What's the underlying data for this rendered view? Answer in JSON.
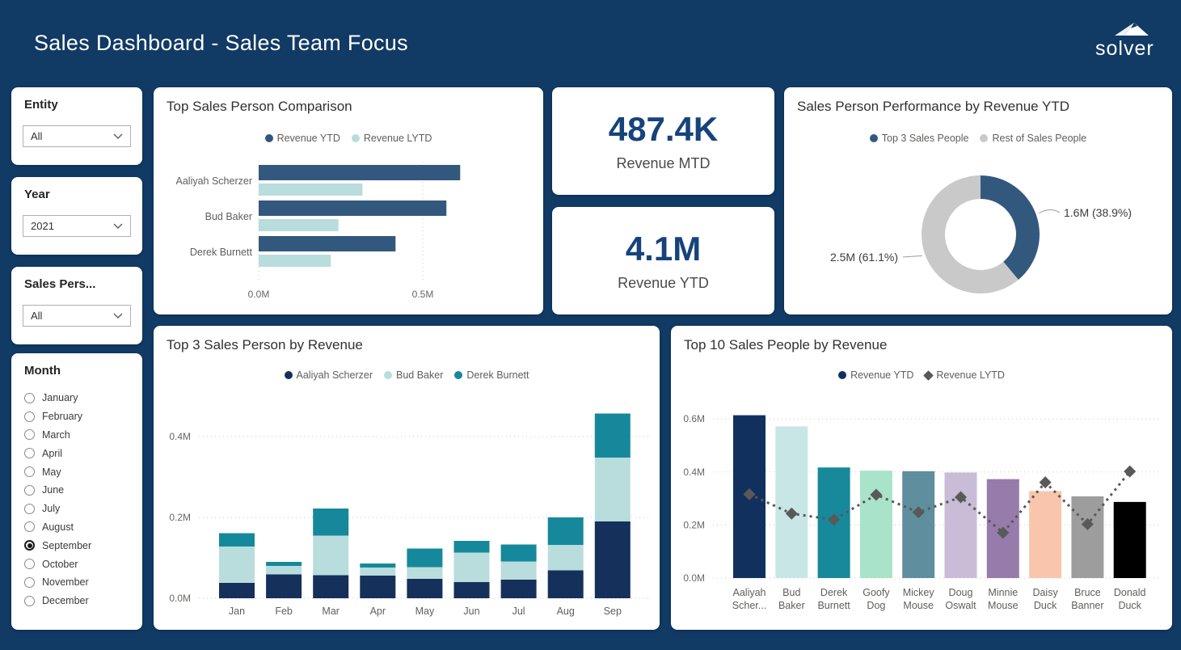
{
  "header": {
    "title": "Sales Dashboard - Sales Team Focus",
    "logo_text": "solver"
  },
  "colors": {
    "page_bg": "#113A64",
    "kpi_value": "#17437B",
    "grid_line": "#c8c8c8",
    "lytd_line": "#595959"
  },
  "filters": {
    "entity": {
      "label": "Entity",
      "value": "All"
    },
    "year": {
      "label": "Year",
      "value": "2021"
    },
    "sales_person": {
      "label": "Sales Pers...",
      "value": "All"
    },
    "month": {
      "label": "Month",
      "selected": "September",
      "options": [
        "January",
        "February",
        "March",
        "April",
        "May",
        "June",
        "July",
        "August",
        "September",
        "October",
        "November",
        "December"
      ]
    }
  },
  "kpis": [
    {
      "value": "487.4K",
      "label": "Revenue MTD"
    },
    {
      "value": "4.1M",
      "label": "Revenue YTD"
    }
  ],
  "chart_data": [
    {
      "id": "comparison",
      "type": "bar",
      "orientation": "horizontal",
      "title": "Top Sales Person Comparison",
      "categories": [
        "Aaliyah Scherzer",
        "Bud Baker",
        "Derek Burnett"
      ],
      "series": [
        {
          "name": "Revenue YTD",
          "color": "#33587E",
          "values": [
            0.614,
            0.572,
            0.417
          ]
        },
        {
          "name": "Revenue LYTD",
          "color": "#B9DCDD",
          "values": [
            0.316,
            0.243,
            0.22
          ]
        }
      ],
      "x_ticks": [
        0.0,
        0.5
      ],
      "xlim": [
        0,
        0.85
      ],
      "unit": "M",
      "grid": true,
      "legend_position": "top"
    },
    {
      "id": "performance_donut",
      "type": "pie",
      "title": "Sales Person Performance by Revenue YTD",
      "slices": [
        {
          "name": "Top 3 Sales People",
          "value": 1.6,
          "pct": 38.9,
          "label": "1.6M (38.9%)",
          "color": "#33587E"
        },
        {
          "name": "Rest of Sales People",
          "value": 2.5,
          "pct": 61.1,
          "label": "2.5M (61.1%)",
          "color": "#C9C9C9"
        }
      ],
      "legend_position": "top"
    },
    {
      "id": "top3_monthly",
      "type": "bar",
      "stacked": true,
      "title": "Top 3 Sales Person by Revenue",
      "categories": [
        "Jan",
        "Feb",
        "Mar",
        "Apr",
        "May",
        "Jun",
        "Jul",
        "Aug",
        "Sep"
      ],
      "series": [
        {
          "name": "Aaliyah Scherzer",
          "color": "#16305C",
          "values": [
            0.038,
            0.059,
            0.057,
            0.056,
            0.048,
            0.04,
            0.046,
            0.069,
            0.19
          ]
        },
        {
          "name": "Bud Baker",
          "color": "#B9DCDD",
          "values": [
            0.09,
            0.021,
            0.098,
            0.02,
            0.029,
            0.073,
            0.045,
            0.063,
            0.158
          ]
        },
        {
          "name": "Derek Burnett",
          "color": "#15899B",
          "values": [
            0.033,
            0.01,
            0.067,
            0.01,
            0.046,
            0.029,
            0.042,
            0.068,
            0.109
          ]
        }
      ],
      "y_ticks": [
        0.0,
        0.2,
        0.4
      ],
      "ylim": [
        0,
        0.468
      ],
      "unit": "M",
      "grid": true,
      "legend_position": "top"
    },
    {
      "id": "top10_people",
      "type": "bar",
      "title": "Top 10 Sales People by Revenue",
      "categories": [
        [
          "Aaliyah",
          "Scher..."
        ],
        [
          "Bud",
          "Baker"
        ],
        [
          "Derek",
          "Burnett"
        ],
        [
          "Goofy",
          "Dog"
        ],
        [
          "Mickey",
          "Mouse"
        ],
        [
          "Doug",
          "Oswalt"
        ],
        [
          "Minnie",
          "Mouse"
        ],
        [
          "Daisy",
          "Duck"
        ],
        [
          "Bruce",
          "Banner"
        ],
        [
          "Donald",
          "Duck"
        ]
      ],
      "series": [
        {
          "name": "Revenue YTD",
          "type": "bar",
          "values": [
            0.614,
            0.572,
            0.417,
            0.405,
            0.403,
            0.398,
            0.373,
            0.328,
            0.308,
            0.287
          ],
          "bar_colors": [
            "#12305E",
            "#C9E6E6",
            "#17899B",
            "#A9E3C9",
            "#5F8E9E",
            "#C9BCD7",
            "#967BAB",
            "#F9C6AD",
            "#9D9D9D",
            "#000000"
          ]
        },
        {
          "name": "Revenue LYTD",
          "type": "line",
          "color": "#595959",
          "marker": "diamond",
          "line_style": "dotted",
          "values": [
            0.316,
            0.243,
            0.22,
            0.314,
            0.248,
            0.305,
            0.171,
            0.361,
            0.203,
            0.402
          ]
        }
      ],
      "y_ticks": [
        0.0,
        0.2,
        0.4,
        0.6
      ],
      "ylim": [
        0,
        0.66
      ],
      "unit": "M",
      "grid": true,
      "legend_position": "top",
      "legend_colors": {
        "Revenue YTD": "#12305E",
        "Revenue LYTD": "#595959"
      }
    }
  ]
}
